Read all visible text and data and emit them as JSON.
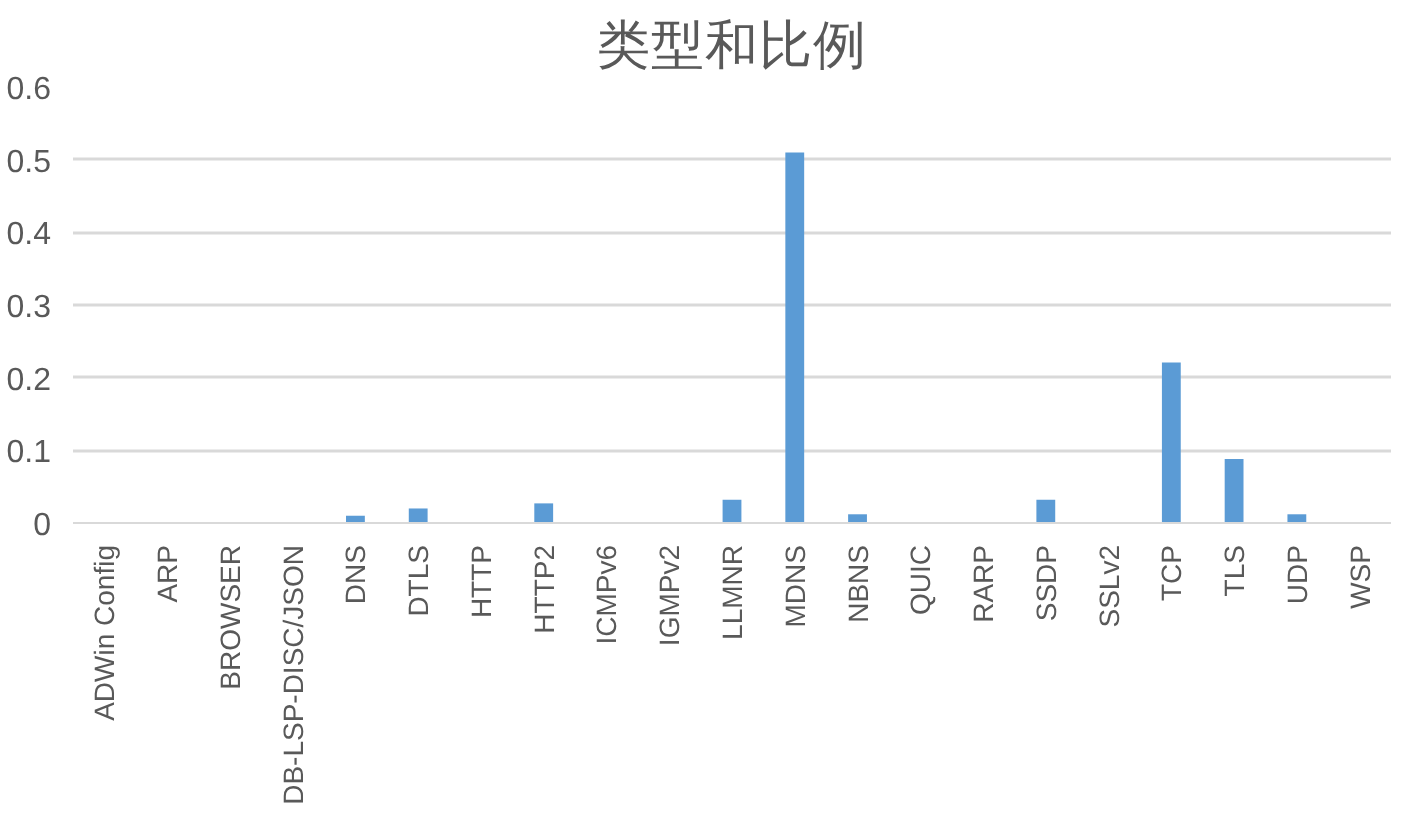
{
  "chart_data": {
    "type": "bar",
    "title": "类型和比例",
    "categories": [
      "ADWin Config",
      "ARP",
      "BROWSER",
      "DB-LSP-DISC/JSON",
      "DNS",
      "DTLS",
      "HTTP",
      "HTTP2",
      "ICMPv6",
      "IGMPv2",
      "LLMNR",
      "MDNS",
      "NBNS",
      "QUIC",
      "RARP",
      "SSDP",
      "SSLv2",
      "TCP",
      "TLS",
      "UDP",
      "WSP"
    ],
    "values": [
      0,
      0,
      0,
      0,
      0.01,
      0.02,
      0,
      0.027,
      0,
      0,
      0.032,
      0.51,
      0.012,
      0,
      0,
      0.032,
      0,
      0.221,
      0.088,
      0.012,
      0
    ],
    "color": "#5b9bd5",
    "ylim": [
      0,
      0.6
    ],
    "yticks": [
      {
        "value": 0,
        "label": "0"
      },
      0.1,
      0.2,
      0.3,
      0.4,
      0.5,
      0.6
    ],
    "grid": "y"
  }
}
